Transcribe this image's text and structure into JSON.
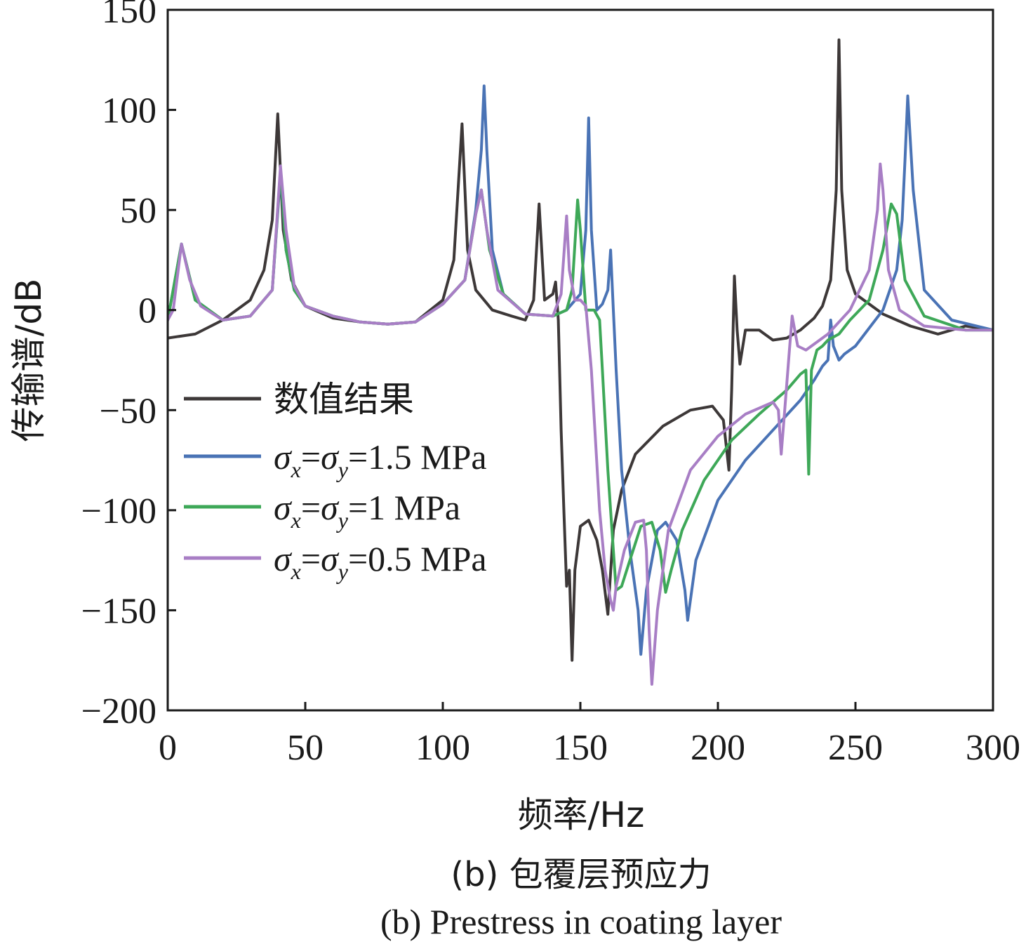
{
  "chart_data": {
    "type": "line",
    "xlabel": "频率/Hz",
    "ylabel": "传输谱/dB",
    "xlim": [
      0,
      300
    ],
    "ylim": [
      -200,
      150
    ],
    "xticks": [
      "0",
      "50",
      "100",
      "150",
      "200",
      "250",
      "300"
    ],
    "yticks": [
      "150",
      "100",
      "50",
      "0",
      "−50",
      "−100",
      "−150",
      "−200"
    ],
    "grid": false,
    "legend_position": "center-left",
    "caption_cn": "(b) 包覆层预应力",
    "caption_en": "(b) Prestress in coating layer",
    "series": [
      {
        "name": "数值结果",
        "color": "#3d3838",
        "x": [
          0,
          10,
          20,
          30,
          35,
          38,
          40,
          42,
          45,
          50,
          60,
          70,
          80,
          90,
          100,
          104,
          107,
          109,
          112,
          118,
          125,
          130,
          133,
          135,
          137,
          140,
          141,
          142,
          143,
          144,
          145,
          146,
          147,
          148,
          150,
          153,
          156,
          158,
          160,
          162,
          165,
          170,
          180,
          190,
          198,
          202,
          204,
          205,
          206,
          207,
          208,
          210,
          215,
          220,
          225,
          230,
          235,
          238,
          241,
          243,
          244,
          245,
          247,
          250,
          260,
          270,
          280,
          290,
          300
        ],
        "y": [
          -14,
          -12,
          -5,
          5,
          20,
          45,
          98,
          40,
          15,
          2,
          -4,
          -6,
          -7,
          -6,
          5,
          25,
          93,
          30,
          10,
          0,
          -3,
          -5,
          5,
          53,
          5,
          8,
          14,
          -5,
          -60,
          -100,
          -138,
          -130,
          -175,
          -130,
          -108,
          -105,
          -115,
          -130,
          -152,
          -110,
          -90,
          -72,
          -58,
          -50,
          -48,
          -55,
          -80,
          -40,
          17,
          -10,
          -27,
          -10,
          -10,
          -15,
          -14,
          -10,
          -4,
          2,
          15,
          60,
          135,
          60,
          20,
          8,
          -2,
          -8,
          -12,
          -8,
          -10
        ]
      },
      {
        "name": "σx=σy=1.5 MPa",
        "color": "#4a73b5",
        "x": [
          0,
          5,
          10,
          20,
          30,
          38,
          41,
          43,
          46,
          50,
          60,
          70,
          80,
          90,
          100,
          108,
          112,
          114,
          115,
          116,
          118,
          122,
          130,
          140,
          145,
          150,
          152,
          153,
          154,
          156,
          158,
          160,
          161,
          162,
          163,
          165,
          168,
          171,
          172,
          174,
          178,
          181,
          185,
          188,
          189,
          192,
          200,
          210,
          220,
          230,
          235,
          238,
          240,
          241,
          242,
          244,
          246,
          250,
          260,
          265,
          267,
          268,
          269,
          271,
          275,
          285,
          300
        ],
        "y": [
          -5,
          33,
          5,
          -5,
          -3,
          10,
          68,
          30,
          10,
          2,
          -3,
          -6,
          -7,
          -6,
          3,
          15,
          50,
          80,
          112,
          80,
          30,
          8,
          -2,
          -3,
          0,
          8,
          40,
          96,
          40,
          0,
          3,
          10,
          30,
          0,
          -30,
          -80,
          -120,
          -150,
          -172,
          -140,
          -110,
          -106,
          -115,
          -140,
          -155,
          -125,
          -95,
          -75,
          -60,
          -45,
          -35,
          -28,
          -25,
          -5,
          -18,
          -25,
          -22,
          -18,
          0,
          20,
          45,
          75,
          107,
          60,
          10,
          -5,
          -10
        ]
      },
      {
        "name": "σx=σy=1 MPa",
        "color": "#3ea858",
        "x": [
          0,
          5,
          10,
          20,
          30,
          38,
          41,
          43,
          46,
          50,
          60,
          70,
          80,
          90,
          100,
          108,
          112,
          114,
          115,
          117,
          122,
          130,
          140,
          145,
          147,
          149,
          150,
          152,
          155,
          157,
          158,
          160,
          162,
          163,
          165,
          168,
          172,
          176,
          179,
          181,
          183,
          187,
          195,
          205,
          215,
          225,
          230,
          232,
          233,
          234,
          236,
          238,
          240,
          244,
          248,
          255,
          260,
          263,
          265,
          268,
          275,
          290,
          300
        ],
        "y": [
          -5,
          33,
          5,
          -5,
          -3,
          10,
          70,
          30,
          10,
          2,
          -3,
          -6,
          -7,
          -6,
          3,
          15,
          48,
          60,
          50,
          30,
          8,
          -2,
          -3,
          0,
          10,
          55,
          40,
          0,
          0,
          -5,
          -30,
          -80,
          -120,
          -140,
          -138,
          -125,
          -108,
          -106,
          -120,
          -141,
          -130,
          -110,
          -85,
          -65,
          -52,
          -40,
          -32,
          -30,
          -82,
          -30,
          -20,
          -18,
          -15,
          -12,
          -5,
          5,
          30,
          53,
          48,
          15,
          -3,
          -10,
          -10
        ]
      },
      {
        "name": "σx=σy=0.5 MPa",
        "color": "#a87ec5",
        "x": [
          0,
          2,
          5,
          8,
          12,
          20,
          30,
          38,
          41,
          43,
          46,
          50,
          60,
          70,
          80,
          90,
          100,
          108,
          112,
          114,
          116,
          120,
          130,
          140,
          143,
          145,
          146,
          148,
          150,
          152,
          154,
          157,
          159,
          161,
          162,
          163,
          166,
          170,
          173,
          174,
          175,
          176,
          178,
          182,
          190,
          200,
          210,
          220,
          222,
          223,
          224,
          226,
          227,
          229,
          232,
          240,
          248,
          255,
          258,
          259,
          260,
          262,
          266,
          275,
          290,
          300
        ],
        "y": [
          -5,
          0,
          33,
          15,
          2,
          -5,
          -3,
          10,
          72,
          40,
          12,
          2,
          -3,
          -6,
          -7,
          -6,
          3,
          15,
          48,
          60,
          40,
          10,
          -2,
          -3,
          8,
          47,
          20,
          5,
          5,
          2,
          -30,
          -100,
          -130,
          -145,
          -150,
          -138,
          -120,
          -106,
          -105,
          -120,
          -160,
          -187,
          -150,
          -110,
          -80,
          -63,
          -52,
          -46,
          -50,
          -72,
          -55,
          -20,
          -3,
          -18,
          -20,
          -12,
          0,
          20,
          50,
          73,
          60,
          20,
          0,
          -8,
          -10,
          -10
        ]
      }
    ]
  }
}
